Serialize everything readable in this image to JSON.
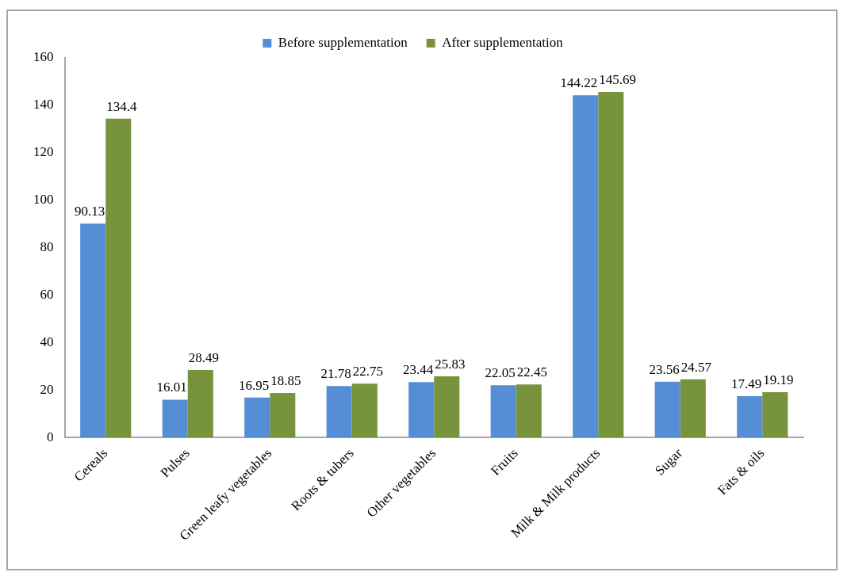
{
  "chart_data": {
    "type": "bar",
    "categories": [
      "Cereals",
      "Pulses",
      "Green leafy vegetables",
      "Roots & tubers",
      "Other vegetables",
      "Fruits",
      "Milk & Milk products",
      "Sugar",
      "Fats & oils"
    ],
    "series": [
      {
        "name": "Before supplementation",
        "color": "#558ed5",
        "values": [
          90.13,
          16.01,
          16.95,
          21.78,
          23.44,
          22.05,
          144.22,
          23.56,
          17.49
        ]
      },
      {
        "name": "After supplementation",
        "color": "#77933c",
        "values": [
          134.4,
          28.49,
          18.85,
          22.75,
          25.83,
          22.45,
          145.69,
          24.57,
          19.19
        ]
      }
    ],
    "ylim": [
      0,
      160
    ],
    "yticks": [
      0,
      20,
      40,
      60,
      80,
      100,
      120,
      140,
      160
    ],
    "grid": false,
    "legend": "top",
    "data_labels": true
  }
}
